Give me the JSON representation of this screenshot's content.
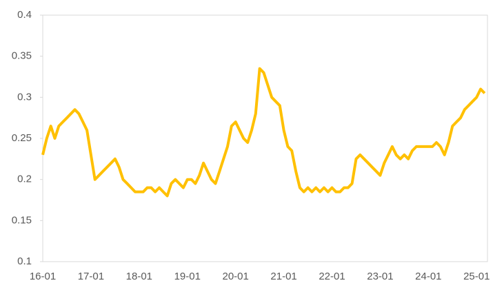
{
  "chart_data": {
    "type": "line",
    "color": "#FFC000",
    "categories": [
      "16-01",
      null,
      null,
      null,
      null,
      null,
      null,
      null,
      null,
      null,
      null,
      null,
      "17-01",
      null,
      null,
      null,
      null,
      null,
      null,
      null,
      null,
      null,
      null,
      null,
      "18-01",
      null,
      null,
      null,
      null,
      null,
      null,
      null,
      null,
      null,
      null,
      null,
      "19-01",
      null,
      null,
      null,
      null,
      null,
      null,
      null,
      null,
      null,
      null,
      null,
      "20-01",
      null,
      null,
      null,
      null,
      null,
      null,
      null,
      null,
      null,
      null,
      null,
      "21-01",
      null,
      null,
      null,
      null,
      null,
      null,
      null,
      null,
      null,
      null,
      null,
      "22-01",
      null,
      null,
      null,
      null,
      null,
      null,
      null,
      null,
      null,
      null,
      null,
      "23-01",
      null,
      null,
      null,
      null,
      null,
      null,
      null,
      null,
      null,
      null,
      null,
      "24-01",
      null,
      null,
      null,
      null,
      null,
      null,
      null,
      null,
      null,
      null,
      null,
      "25-01",
      null,
      null
    ],
    "values": [
      0.23,
      0.25,
      0.265,
      0.25,
      0.265,
      0.27,
      0.275,
      0.28,
      0.285,
      0.28,
      0.27,
      0.26,
      0.23,
      0.2,
      0.205,
      0.21,
      0.215,
      0.22,
      0.225,
      0.215,
      0.2,
      0.195,
      0.19,
      0.185,
      0.185,
      0.185,
      0.19,
      0.19,
      0.185,
      0.19,
      0.185,
      0.18,
      0.195,
      0.2,
      0.195,
      0.19,
      0.2,
      0.2,
      0.195,
      0.205,
      0.22,
      0.21,
      0.2,
      0.195,
      0.21,
      0.225,
      0.24,
      0.265,
      0.27,
      0.26,
      0.25,
      0.245,
      0.26,
      0.28,
      0.335,
      0.33,
      0.315,
      0.3,
      0.295,
      0.29,
      0.26,
      0.24,
      0.235,
      0.21,
      0.19,
      0.185,
      0.19,
      0.185,
      0.19,
      0.185,
      0.19,
      0.185,
      0.19,
      0.185,
      0.185,
      0.19,
      0.19,
      0.195,
      0.225,
      0.23,
      0.225,
      0.22,
      0.215,
      0.21,
      0.205,
      0.22,
      0.23,
      0.24,
      0.23,
      0.225,
      0.23,
      0.225,
      0.235,
      0.24,
      0.24,
      0.24,
      0.24,
      0.24,
      0.245,
      0.24,
      0.23,
      0.245,
      0.265,
      0.27,
      0.275,
      0.285,
      0.29,
      0.295,
      0.3,
      0.31,
      0.305
    ],
    "ylim": [
      0.1,
      0.4
    ],
    "yticks": [
      0.1,
      0.15,
      0.2,
      0.25,
      0.3,
      0.35,
      0.4
    ]
  }
}
